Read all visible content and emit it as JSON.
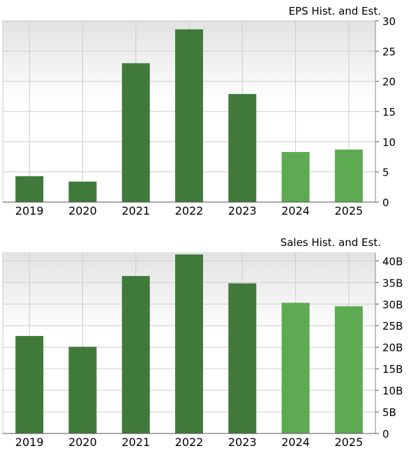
{
  "chart_data": [
    {
      "type": "bar",
      "title": "EPS Hist. and Est.",
      "categories": [
        "2019",
        "2020",
        "2021",
        "2022",
        "2023",
        "2024",
        "2025"
      ],
      "values": [
        4.3,
        3.4,
        23.0,
        28.6,
        17.9,
        8.3,
        8.7
      ],
      "estimate_from_index": 5,
      "xlabel": "",
      "ylabel": "",
      "ylim": [
        0,
        30
      ],
      "yticks": [
        0,
        5,
        10,
        15,
        20,
        25,
        30
      ],
      "ytick_labels": [
        "0",
        "5",
        "10",
        "15",
        "20",
        "25",
        "30"
      ],
      "grid": true,
      "colors": {
        "historical": "#3f7a3b",
        "estimate": "#5eaa52",
        "grid": "#cccccc"
      }
    },
    {
      "type": "bar",
      "title": "Sales Hist. and Est.",
      "categories": [
        "2019",
        "2020",
        "2021",
        "2022",
        "2023",
        "2024",
        "2025"
      ],
      "values": [
        22.6,
        20.1,
        36.5,
        41.5,
        34.8,
        30.3,
        29.5
      ],
      "estimate_from_index": 5,
      "xlabel": "",
      "ylabel": "",
      "ylim": [
        0,
        42
      ],
      "yticks": [
        0,
        5,
        10,
        15,
        20,
        25,
        30,
        35,
        40
      ],
      "ytick_labels": [
        "0",
        "5B",
        "10B",
        "15B",
        "20B",
        "25B",
        "30B",
        "35B",
        "40B"
      ],
      "grid": true,
      "colors": {
        "historical": "#3f7a3b",
        "estimate": "#5eaa52",
        "grid": "#cccccc"
      }
    }
  ]
}
